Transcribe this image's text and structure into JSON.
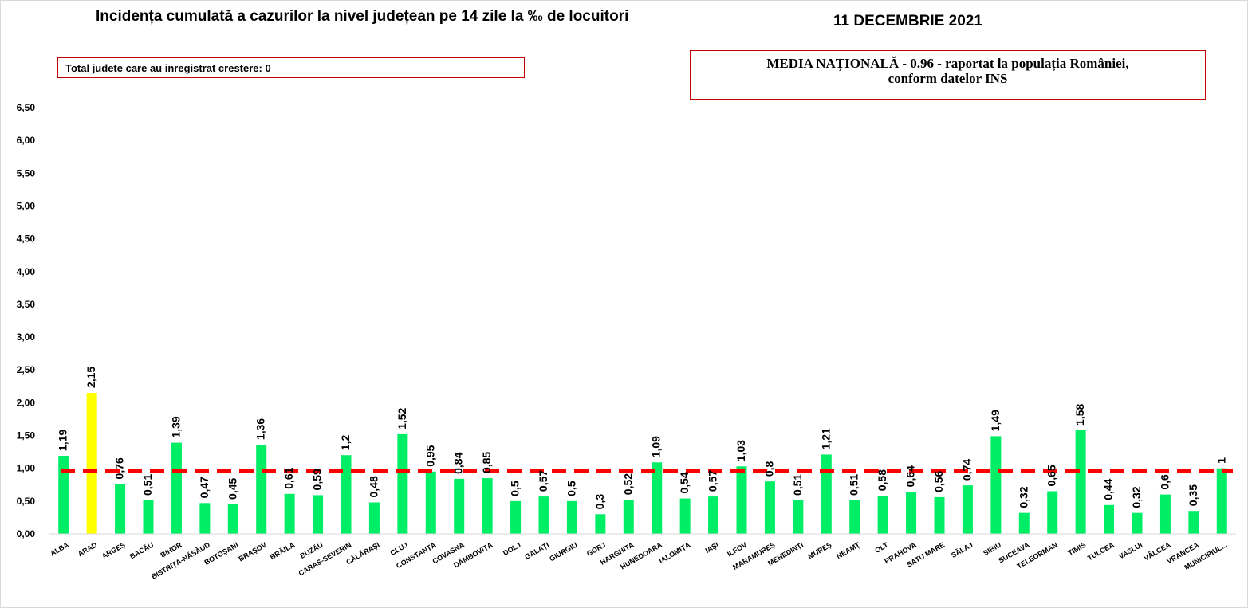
{
  "header": {
    "title": "Incidența cumulată a cazurilor la nivel județean pe 14 zile la ‰ de locuitori",
    "date": "11 DECEMBRIE 2021"
  },
  "notes": {
    "increase_box": "Total judete care au inregistrat crestere: 0",
    "national_line1": "MEDIA NAȚIONALĂ  - 0.96 -  raportat la populația României,",
    "national_line2": "conform datelor INS"
  },
  "chart_data": {
    "type": "bar",
    "title": "Incidența cumulată a cazurilor la nivel județean pe 14 zile la ‰ de locuitori",
    "xlabel": "",
    "ylabel": "",
    "ylim": [
      0,
      6.5
    ],
    "y_ticks": [
      "0,00",
      "0,50",
      "1,00",
      "1,50",
      "2,00",
      "2,50",
      "3,00",
      "3,50",
      "4,00",
      "4,50",
      "5,00",
      "5,50",
      "6,00",
      "6,50"
    ],
    "categories": [
      "ALBA",
      "ARAD",
      "ARGEȘ",
      "BACĂU",
      "BIHOR",
      "BISTRIȚA-NĂSĂUD",
      "BOTOȘANI",
      "BRAȘOV",
      "BRĂILA",
      "BUZĂU",
      "CARAȘ-SEVERIN",
      "CĂLĂRAȘI",
      "CLUJ",
      "CONSTANȚA",
      "COVASNA",
      "DÂMBOVIȚA",
      "DOLJ",
      "GALAȚI",
      "GIURGIU",
      "GORJ",
      "HARGHITA",
      "HUNEDOARA",
      "IALOMIȚA",
      "IAȘI",
      "ILFOV",
      "MARAMUREȘ",
      "MEHEDINȚI",
      "MUREȘ",
      "NEAMȚ",
      "OLT",
      "PRAHOVA",
      "SATU MARE",
      "SĂLAJ",
      "SIBIU",
      "SUCEAVA",
      "TELEORMAN",
      "TIMIȘ",
      "TULCEA",
      "VASLUI",
      "VÂLCEA",
      "VRANCEA",
      "MUNICIPIUL..."
    ],
    "values": [
      1.19,
      2.15,
      0.76,
      0.51,
      1.39,
      0.47,
      0.45,
      1.36,
      0.61,
      0.59,
      1.2,
      0.48,
      1.52,
      0.95,
      0.84,
      0.85,
      0.5,
      0.57,
      0.5,
      0.3,
      0.52,
      1.09,
      0.54,
      0.57,
      1.03,
      0.8,
      0.51,
      1.21,
      0.51,
      0.58,
      0.64,
      0.56,
      0.74,
      1.49,
      0.32,
      0.65,
      1.58,
      0.44,
      0.32,
      0.6,
      0.35,
      1
    ],
    "data_labels": [
      "1,19",
      "2,15",
      "0,76",
      "0,51",
      "1,39",
      "0,47",
      "0,45",
      "1,36",
      "0,61",
      "0,59",
      "1,2",
      "0,48",
      "1,52",
      "0,95",
      "0,84",
      "0,85",
      "0,5",
      "0,57",
      "0,5",
      "0,3",
      "0,52",
      "1,09",
      "0,54",
      "0,57",
      "1,03",
      "0,8",
      "0,51",
      "1,21",
      "0,51",
      "0,58",
      "0,64",
      "0,56",
      "0,74",
      "1,49",
      "0,32",
      "0,65",
      "1,58",
      "0,44",
      "0,32",
      "0,6",
      "0,35",
      "1"
    ],
    "highlight_index": 1,
    "reference_line": {
      "value": 0.96,
      "color": "#ff0000",
      "style": "dashed"
    },
    "colors": {
      "bar": "#00ee66",
      "highlight": "#ffff00",
      "reference": "#ff0000",
      "box_border": "#c00000"
    },
    "grid": false,
    "legend": "none"
  }
}
